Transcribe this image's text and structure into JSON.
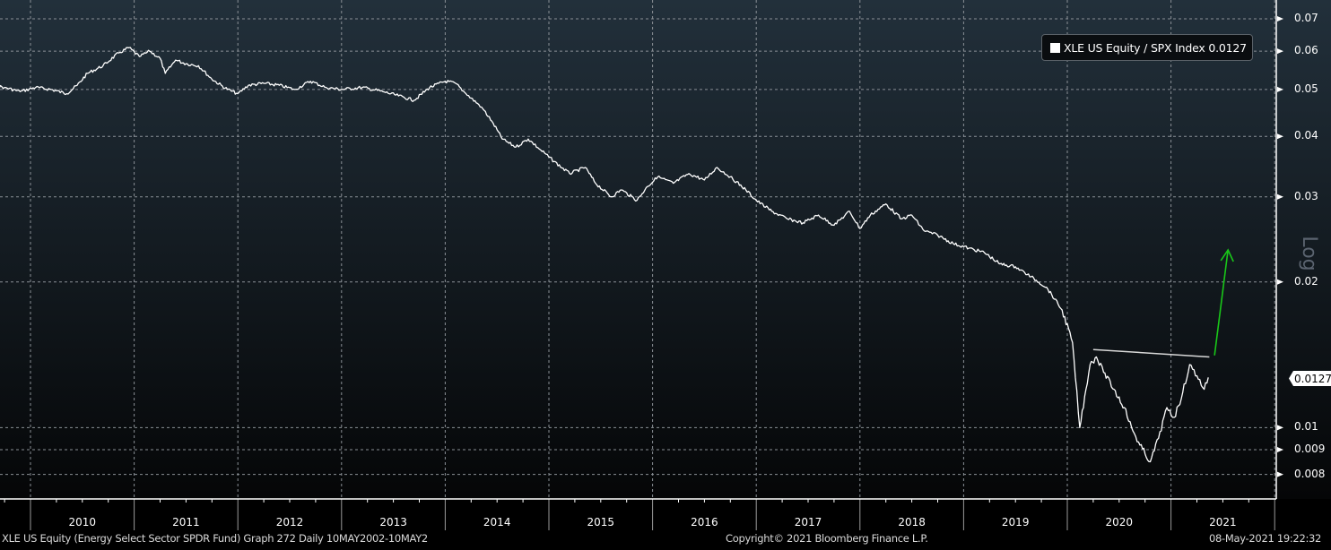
{
  "legend": {
    "label": "XLE US Equity / SPX Index 0.0127",
    "series_color": "#ffffff"
  },
  "axis": {
    "scale_label": "Log",
    "last_value_badge": "0.0127"
  },
  "footer": {
    "left": "XLE US Equity (Energy Select Sector SPDR Fund) Graph 272  Daily 10MAY2002-10MAY2",
    "center": "Copyright© 2021 Bloomberg Finance L.P.",
    "right": "08-May-2021 19:22:32"
  },
  "colors": {
    "bg_top": "#22303b",
    "bg_bottom": "#050607",
    "grid": "#8a9096",
    "line": "#ffffff",
    "trendline": "#d8d8d8",
    "arrow": "#19c719"
  },
  "chart_data": {
    "type": "line",
    "title": "XLE US Equity / SPX Index",
    "xlabel": "",
    "ylabel": "Log",
    "yscale": "log",
    "ylim": [
      0.0075,
      0.074
    ],
    "grid": true,
    "legend_position": "top-right",
    "y_ticks": [
      0.07,
      0.06,
      0.05,
      0.04,
      0.03,
      0.02,
      0.01,
      0.009,
      0.008
    ],
    "y_tick_labels": [
      "0.07",
      "0.06",
      "0.05",
      "0.04",
      "0.03",
      "0.02",
      "0.01",
      "0.009",
      "0.008"
    ],
    "x_tick_labels": [
      "2010",
      "2011",
      "2012",
      "2013",
      "2014",
      "2015",
      "2016",
      "2017",
      "2018",
      "2019",
      "2020",
      "2021"
    ],
    "x_range": [
      "2009-06",
      "2021-05"
    ],
    "last_value": 0.0127,
    "series": [
      {
        "name": "XLE US Equity / SPX Index",
        "x": [
          2009.4,
          2009.5,
          2009.62,
          2009.75,
          2009.9,
          2010.05,
          2010.2,
          2010.35,
          2010.45,
          2010.55,
          2010.7,
          2010.85,
          2010.95,
          2011.05,
          2011.15,
          2011.25,
          2011.3,
          2011.4,
          2011.5,
          2011.62,
          2011.75,
          2011.9,
          2012.0,
          2012.1,
          2012.25,
          2012.4,
          2012.55,
          2012.7,
          2012.85,
          2013.0,
          2013.2,
          2013.4,
          2013.55,
          2013.7,
          2013.85,
          2014.0,
          2014.1,
          2014.2,
          2014.35,
          2014.45,
          2014.55,
          2014.68,
          2014.8,
          2014.92,
          2015.05,
          2015.2,
          2015.35,
          2015.45,
          2015.6,
          2015.7,
          2015.85,
          2015.95,
          2016.05,
          2016.2,
          2016.35,
          2016.5,
          2016.62,
          2016.75,
          2016.9,
          2017.0,
          2017.15,
          2017.3,
          2017.45,
          2017.6,
          2017.75,
          2017.9,
          2018.0,
          2018.1,
          2018.25,
          2018.4,
          2018.5,
          2018.62,
          2018.75,
          2018.9,
          2019.05,
          2019.2,
          2019.35,
          2019.5,
          2019.65,
          2019.8,
          2019.95,
          2020.05,
          2020.12,
          2020.18,
          2020.22,
          2020.28,
          2020.35,
          2020.45,
          2020.55,
          2020.62,
          2020.7,
          2020.8,
          2020.88,
          2020.96,
          2021.03,
          2021.1,
          2021.18,
          2021.25,
          2021.32,
          2021.36
        ],
        "y": [
          0.053,
          0.054,
          0.051,
          0.0505,
          0.0495,
          0.0505,
          0.05,
          0.049,
          0.051,
          0.054,
          0.056,
          0.0595,
          0.061,
          0.0585,
          0.06,
          0.058,
          0.054,
          0.0575,
          0.0565,
          0.056,
          0.0525,
          0.05,
          0.049,
          0.051,
          0.0515,
          0.051,
          0.05,
          0.052,
          0.0505,
          0.05,
          0.0505,
          0.0495,
          0.0485,
          0.0475,
          0.0505,
          0.052,
          0.0515,
          0.049,
          0.046,
          0.043,
          0.0395,
          0.038,
          0.0395,
          0.0375,
          0.0355,
          0.0335,
          0.0345,
          0.032,
          0.03,
          0.031,
          0.0295,
          0.0315,
          0.033,
          0.032,
          0.0335,
          0.0325,
          0.0345,
          0.033,
          0.031,
          0.0295,
          0.028,
          0.027,
          0.0265,
          0.0275,
          0.0262,
          0.028,
          0.0258,
          0.0275,
          0.029,
          0.027,
          0.0275,
          0.0255,
          0.025,
          0.024,
          0.0235,
          0.023,
          0.0218,
          0.0215,
          0.0205,
          0.0195,
          0.0175,
          0.015,
          0.01,
          0.012,
          0.0135,
          0.014,
          0.013,
          0.012,
          0.011,
          0.01,
          0.0092,
          0.0085,
          0.0095,
          0.011,
          0.0105,
          0.0115,
          0.0135,
          0.0128,
          0.012,
          0.0127
        ]
      }
    ],
    "annotations": [
      {
        "type": "trendline",
        "label": "neckline",
        "from": [
          2020.25,
          0.0145
        ],
        "to": [
          2021.37,
          0.014
        ],
        "color": "#d8d8d8"
      },
      {
        "type": "arrow",
        "label": "breakout target",
        "from": [
          2021.42,
          0.0141
        ],
        "to": [
          2021.55,
          0.0233
        ],
        "color": "#19c719"
      }
    ]
  }
}
